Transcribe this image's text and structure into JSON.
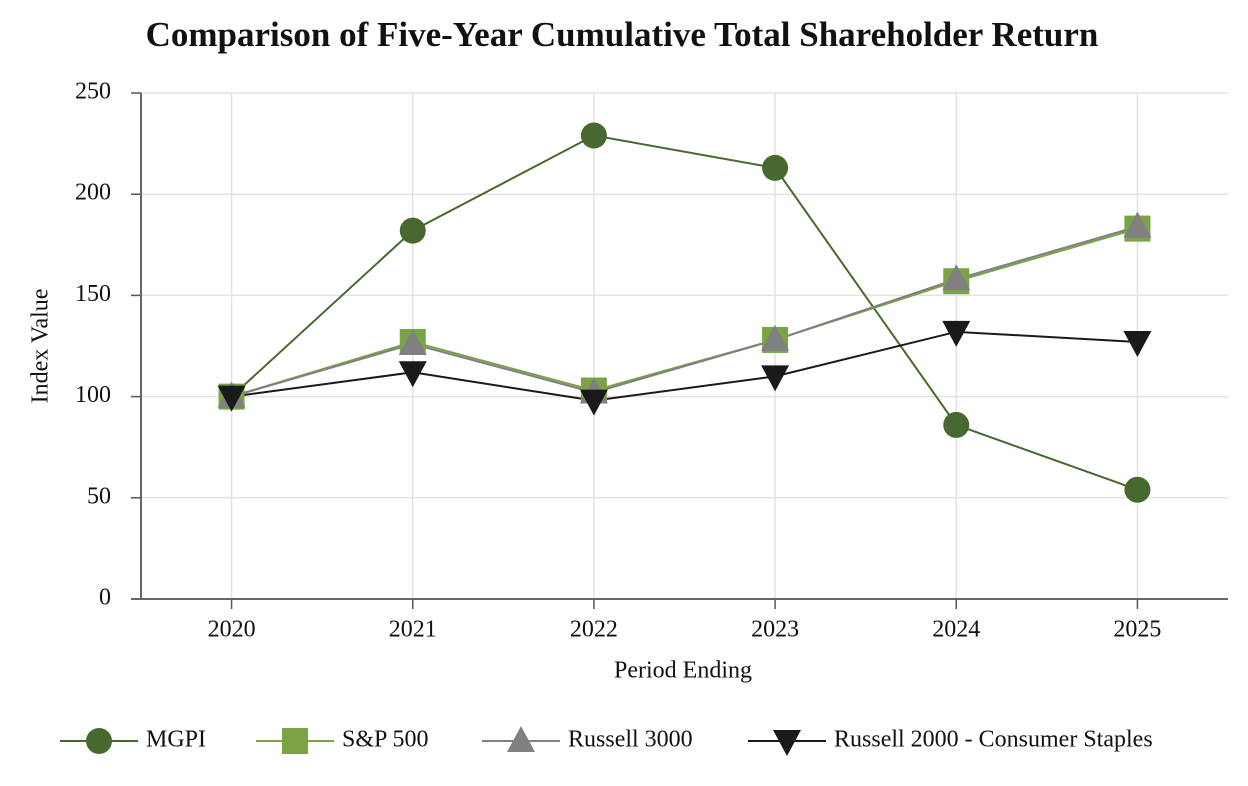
{
  "chart_data": {
    "type": "line",
    "title": "Comparison of Five-Year Cumulative Total Shareholder Return",
    "x_label": "Period Ending",
    "y_label": "Index Value",
    "categories": [
      "2020",
      "2021",
      "2022",
      "2023",
      "2024",
      "2025"
    ],
    "ylim": [
      0,
      250
    ],
    "yticks": [
      0,
      50,
      100,
      150,
      200,
      250
    ],
    "grid": true,
    "legend": "bottom",
    "series": [
      {
        "name": "MGPI",
        "color": "#476930",
        "marker": "circle",
        "values": [
          100,
          182,
          229,
          213,
          86,
          54
        ]
      },
      {
        "name": "S&P 500",
        "color": "#7aa343",
        "marker": "square",
        "values": [
          100,
          127,
          103,
          128,
          157,
          183
        ]
      },
      {
        "name": "Russell 3000",
        "color": "#808080",
        "marker": "triangle-up",
        "values": [
          100,
          126,
          102,
          128,
          158,
          184
        ]
      },
      {
        "name": "Russell 2000 - Consumer Staples",
        "color": "#1a1a1a",
        "marker": "triangle-down",
        "values": [
          100,
          112,
          98,
          110,
          132,
          127
        ]
      }
    ]
  }
}
